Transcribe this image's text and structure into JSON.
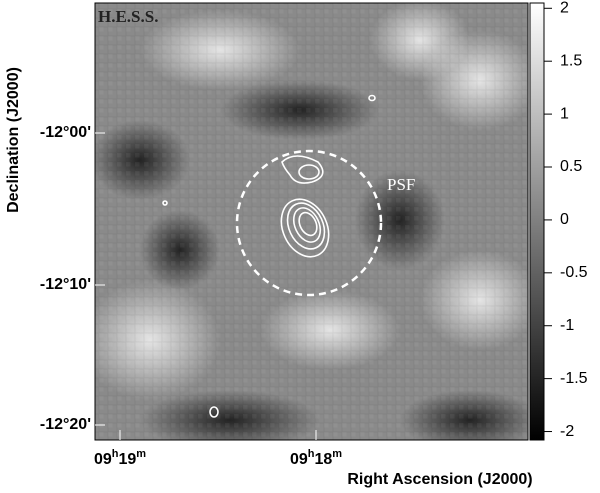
{
  "figure": {
    "label": "H.E.S.S.",
    "psf_label": "PSF",
    "x_label": "Right Ascension (J2000)",
    "y_label": "Declination (J2000)",
    "x_ticks": [
      [
        "09",
        "h",
        "19",
        "m"
      ],
      [
        "09",
        "h",
        "18",
        "m"
      ]
    ],
    "y_ticks": [
      "-12°00'",
      "-12°10'",
      "-12°20'"
    ],
    "colorbar": {
      "lim": [
        -2.08,
        2.05
      ],
      "ticks": [
        2,
        1.5,
        1,
        0.5,
        0,
        -0.5,
        -1,
        -1.5,
        -2
      ]
    }
  }
}
